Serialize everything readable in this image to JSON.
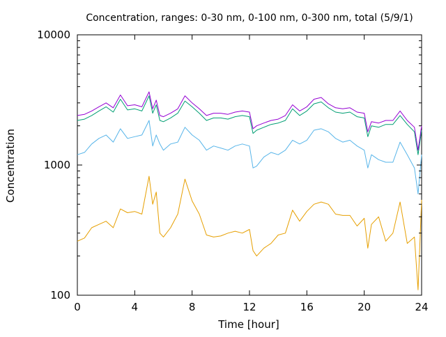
{
  "chart_data": {
    "type": "line",
    "title": "Concentration, ranges: 0-30 nm, 0-100 nm, 0-300 nm, total (5/9/1)",
    "xlabel": "Time [hour]",
    "ylabel": "Concentration",
    "xlim": [
      0,
      24
    ],
    "ylim": [
      100,
      10000
    ],
    "yscale": "log",
    "grid": false,
    "legend": "none",
    "x_ticks": [
      0,
      4,
      8,
      12,
      16,
      20,
      24
    ],
    "x_tick_labels": [
      "0",
      "4",
      "8",
      "12",
      "16",
      "20",
      "24"
    ],
    "y_ticks": [
      100,
      1000,
      10000
    ],
    "y_tick_labels": [
      "100",
      "1000",
      "10000"
    ],
    "x": [
      0,
      0.5,
      1,
      1.5,
      2,
      2.5,
      3,
      3.5,
      4,
      4.5,
      5,
      5.25,
      5.5,
      5.75,
      6,
      6.5,
      7,
      7.5,
      8,
      8.5,
      9,
      9.5,
      10,
      10.5,
      11,
      11.5,
      12,
      12.25,
      12.5,
      13,
      13.5,
      14,
      14.5,
      15,
      15.5,
      16,
      16.5,
      17,
      17.5,
      18,
      18.5,
      19,
      19.5,
      20,
      20.25,
      20.5,
      21,
      21.5,
      22,
      22.5,
      23,
      23.5,
      23.75,
      24
    ],
    "series": [
      {
        "color": "#e69f00",
        "values": [
          260,
          275,
          330,
          350,
          370,
          330,
          460,
          430,
          440,
          420,
          820,
          500,
          620,
          300,
          280,
          330,
          420,
          780,
          530,
          420,
          290,
          280,
          285,
          300,
          310,
          300,
          320,
          220,
          200,
          230,
          250,
          290,
          300,
          450,
          370,
          440,
          500,
          520,
          500,
          420,
          410,
          410,
          340,
          390,
          230,
          350,
          400,
          260,
          300,
          520,
          250,
          280,
          110,
          540
        ]
      },
      {
        "color": "#56b4e9",
        "values": [
          1200,
          1250,
          1450,
          1600,
          1700,
          1500,
          1900,
          1600,
          1650,
          1700,
          2200,
          1400,
          1700,
          1450,
          1300,
          1450,
          1500,
          1950,
          1700,
          1550,
          1300,
          1400,
          1350,
          1300,
          1400,
          1450,
          1400,
          950,
          980,
          1150,
          1250,
          1200,
          1300,
          1550,
          1450,
          1550,
          1850,
          1900,
          1800,
          1600,
          1500,
          1550,
          1400,
          1300,
          950,
          1200,
          1100,
          1050,
          1050,
          1500,
          1200,
          950,
          600,
          1200
        ]
      },
      {
        "color": "#009e73",
        "values": [
          2200,
          2250,
          2400,
          2600,
          2800,
          2550,
          3200,
          2650,
          2700,
          2600,
          3400,
          2500,
          2900,
          2200,
          2150,
          2300,
          2500,
          3100,
          2800,
          2500,
          2200,
          2300,
          2300,
          2250,
          2350,
          2400,
          2350,
          1750,
          1850,
          1950,
          2050,
          2100,
          2200,
          2700,
          2400,
          2600,
          2950,
          3050,
          2750,
          2550,
          2500,
          2550,
          2350,
          2300,
          1650,
          2000,
          1950,
          2050,
          2050,
          2400,
          2050,
          1800,
          1200,
          1850
        ]
      },
      {
        "color": "#9400d3",
        "values": [
          2400,
          2450,
          2600,
          2800,
          3000,
          2750,
          3450,
          2850,
          2900,
          2800,
          3650,
          2700,
          3150,
          2400,
          2350,
          2500,
          2700,
          3400,
          3000,
          2700,
          2400,
          2500,
          2500,
          2450,
          2550,
          2600,
          2550,
          1900,
          2000,
          2100,
          2200,
          2250,
          2400,
          2900,
          2600,
          2800,
          3200,
          3300,
          2950,
          2750,
          2700,
          2750,
          2550,
          2500,
          1800,
          2150,
          2100,
          2200,
          2200,
          2600,
          2200,
          1950,
          1300,
          2000
        ]
      }
    ]
  }
}
